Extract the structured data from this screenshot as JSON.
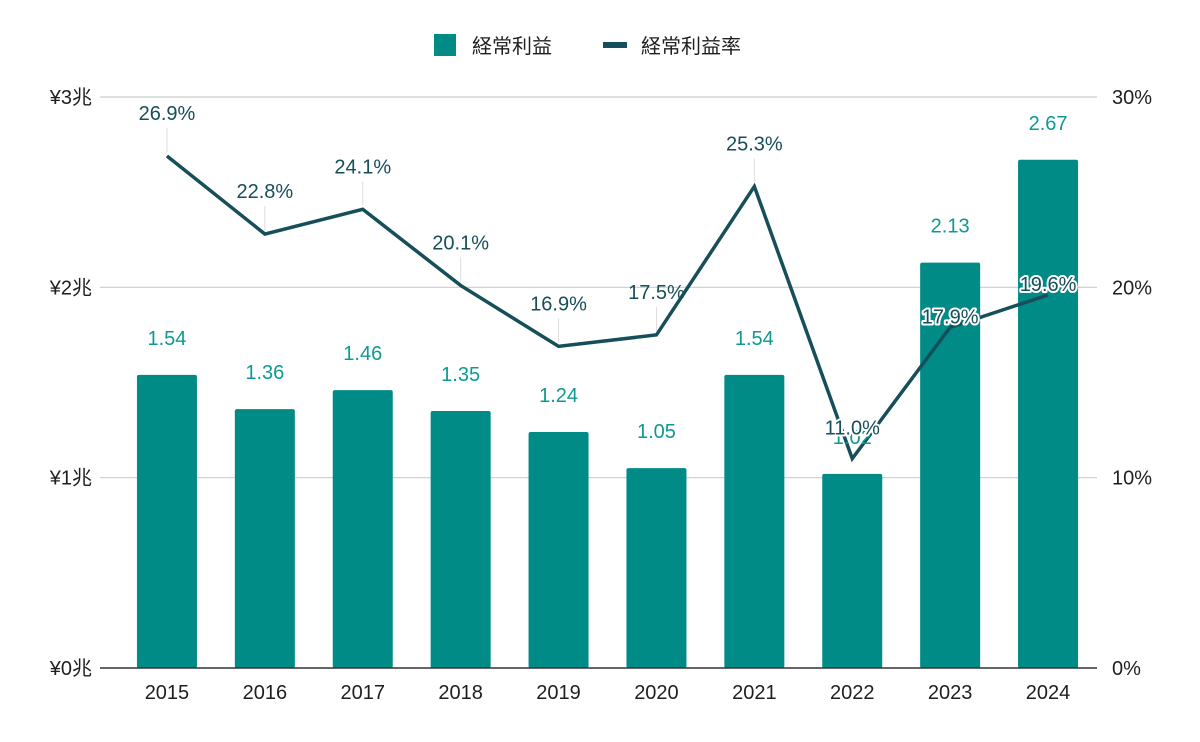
{
  "chart_data": {
    "type": "bar",
    "categories": [
      "2015",
      "2016",
      "2017",
      "2018",
      "2019",
      "2020",
      "2021",
      "2022",
      "2023",
      "2024"
    ],
    "series": [
      {
        "name": "経常利益",
        "type": "bar",
        "axis": "left",
        "values": [
          1.54,
          1.36,
          1.46,
          1.35,
          1.24,
          1.05,
          1.54,
          1.02,
          2.13,
          2.67
        ],
        "labels": [
          "1.54",
          "1.36",
          "1.46",
          "1.35",
          "1.24",
          "1.05",
          "1.54",
          "1.02",
          "2.13",
          "2.67"
        ],
        "color": "#008b87"
      },
      {
        "name": "経常利益率",
        "type": "line",
        "axis": "right",
        "values": [
          26.9,
          22.8,
          24.1,
          20.1,
          16.9,
          17.5,
          25.3,
          11.0,
          17.9,
          19.6
        ],
        "labels": [
          "26.9%",
          "22.8%",
          "24.1%",
          "20.1%",
          "16.9%",
          "17.5%",
          "25.3%",
          "11.0%",
          "17.9%",
          "19.6%"
        ],
        "color": "#164e5a"
      }
    ],
    "y_left": {
      "min": 0,
      "max": 3,
      "ticks": [
        0,
        1,
        2,
        3
      ],
      "tick_labels": [
        "¥0兆",
        "¥1兆",
        "¥2兆",
        "¥3兆"
      ]
    },
    "y_right": {
      "min": 0,
      "max": 30,
      "ticks": [
        0,
        10,
        20,
        30
      ],
      "tick_labels": [
        "0%",
        "10%",
        "20%",
        "30%"
      ]
    },
    "grid": true,
    "legend_position": "top-center",
    "colors": {
      "label_bar": "#0d9a93",
      "label_line": "#164e5a",
      "grid": "#cccccc",
      "axis": "#333333"
    }
  }
}
